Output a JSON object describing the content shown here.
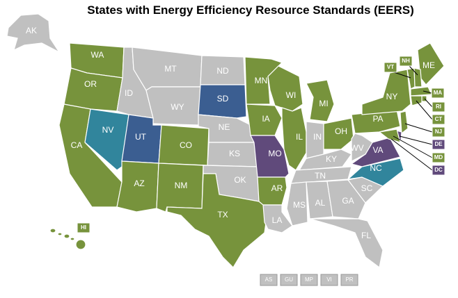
{
  "title": "States with  Energy Efficiency Resource Standards (EERS)",
  "states": [
    {
      "label": "AK",
      "color": "#c0c0c0"
    },
    {
      "label": "WA",
      "color": "#77933c"
    },
    {
      "label": "OR",
      "color": "#77933c"
    },
    {
      "label": "CA",
      "color": "#77933c"
    },
    {
      "label": "NV",
      "color": "#31859c"
    },
    {
      "label": "ID",
      "color": "#c0c0c0"
    },
    {
      "label": "MT",
      "color": "#c0c0c0"
    },
    {
      "label": "WY",
      "color": "#c0c0c0"
    },
    {
      "label": "UT",
      "color": "#3b5e91"
    },
    {
      "label": "CO",
      "color": "#77933c"
    },
    {
      "label": "AZ",
      "color": "#77933c"
    },
    {
      "label": "NM",
      "color": "#77933c"
    },
    {
      "label": "ND",
      "color": "#c0c0c0"
    },
    {
      "label": "SD",
      "color": "#3b5e91"
    },
    {
      "label": "NE",
      "color": "#c0c0c0"
    },
    {
      "label": "KS",
      "color": "#c0c0c0"
    },
    {
      "label": "OK",
      "color": "#c0c0c0"
    },
    {
      "label": "TX",
      "color": "#77933c"
    },
    {
      "label": "MN",
      "color": "#77933c"
    },
    {
      "label": "IA",
      "color": "#77933c"
    },
    {
      "label": "MO",
      "color": "#604a7b"
    },
    {
      "label": "AR",
      "color": "#77933c"
    },
    {
      "label": "LA",
      "color": "#c0c0c0"
    },
    {
      "label": "WI",
      "color": "#77933c"
    },
    {
      "label": "IL",
      "color": "#77933c"
    },
    {
      "label": "MI",
      "color": "#77933c"
    },
    {
      "label": "IN",
      "color": "#c0c0c0"
    },
    {
      "label": "OH",
      "color": "#77933c"
    },
    {
      "label": "KY",
      "color": "#c0c0c0"
    },
    {
      "label": "TN",
      "color": "#c0c0c0"
    },
    {
      "label": "MS",
      "color": "#c0c0c0"
    },
    {
      "label": "AL",
      "color": "#c0c0c0"
    },
    {
      "label": "GA",
      "color": "#c0c0c0"
    },
    {
      "label": "FL",
      "color": "#c0c0c0"
    },
    {
      "label": "SC",
      "color": "#c0c0c0"
    },
    {
      "label": "NC",
      "color": "#31859c"
    },
    {
      "label": "VA",
      "color": "#604a7b"
    },
    {
      "label": "WV",
      "color": "#c0c0c0"
    },
    {
      "label": "PA",
      "color": "#77933c"
    },
    {
      "label": "NY",
      "color": "#77933c"
    },
    {
      "label": "ME",
      "color": "#77933c"
    },
    {
      "label": "VT",
      "color": "#77933c"
    },
    {
      "label": "NH",
      "color": "#77933c"
    },
    {
      "label": "MA",
      "color": "#77933c"
    },
    {
      "label": "RI",
      "color": "#77933c"
    },
    {
      "label": "CT",
      "color": "#77933c"
    },
    {
      "label": "NJ",
      "color": "#77933c"
    },
    {
      "label": "DE",
      "color": "#604a7b"
    },
    {
      "label": "MD",
      "color": "#77933c"
    },
    {
      "label": "DC",
      "color": "#604a7b"
    },
    {
      "label": "HI",
      "color": "#77933c"
    }
  ],
  "territories": [
    "AS",
    "GU",
    "MP",
    "VI",
    "PR"
  ]
}
